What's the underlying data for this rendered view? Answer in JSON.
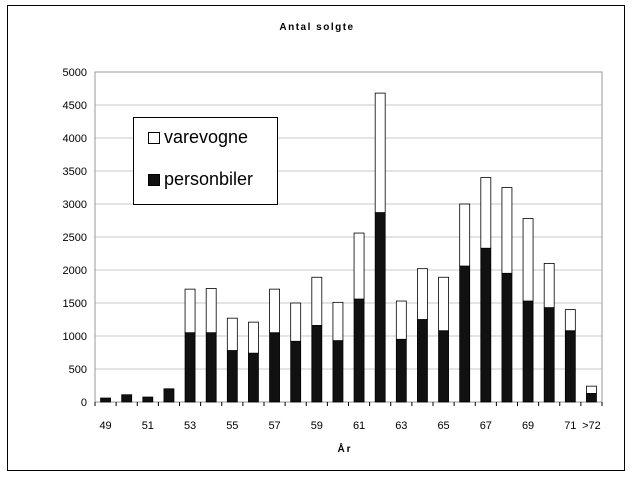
{
  "chart_data": {
    "type": "bar",
    "stacked": true,
    "title": "Antal solgte",
    "xlabel": "År",
    "ylabel": "",
    "ylim": [
      0,
      5000
    ],
    "yticks": [
      0,
      500,
      1000,
      1500,
      2000,
      2500,
      3000,
      3500,
      4000,
      4500,
      5000
    ],
    "grid": true,
    "legend_position": "top-left",
    "categories": [
      "49",
      "50",
      "51",
      "52",
      "53",
      "54",
      "55",
      "56",
      "57",
      "58",
      "59",
      "60",
      "61",
      "62",
      "63",
      "64",
      "65",
      "66",
      "67",
      "68",
      "69",
      "70",
      "71",
      ">72"
    ],
    "category_labels_shown": [
      "49",
      "51",
      "53",
      "55",
      "57",
      "59",
      "61",
      "63",
      "65",
      "67",
      "69",
      "71",
      ">72"
    ],
    "series": [
      {
        "name": "personbiler",
        "color": "#111111",
        "values": [
          60,
          110,
          75,
          200,
          1050,
          1050,
          780,
          740,
          1050,
          920,
          1160,
          930,
          1560,
          2870,
          950,
          1250,
          1080,
          2060,
          2330,
          1950,
          1530,
          1430,
          1080,
          130
        ]
      },
      {
        "name": "varevogne",
        "color": "#ffffff",
        "values": [
          0,
          0,
          0,
          0,
          660,
          670,
          490,
          470,
          660,
          580,
          730,
          580,
          1000,
          1810,
          580,
          770,
          810,
          940,
          1070,
          1300,
          1250,
          670,
          320,
          110
        ]
      }
    ]
  },
  "legend": [
    {
      "label": "varevogne",
      "color": "#ffffff"
    },
    {
      "label": "personbiler",
      "color": "#111111"
    }
  ]
}
